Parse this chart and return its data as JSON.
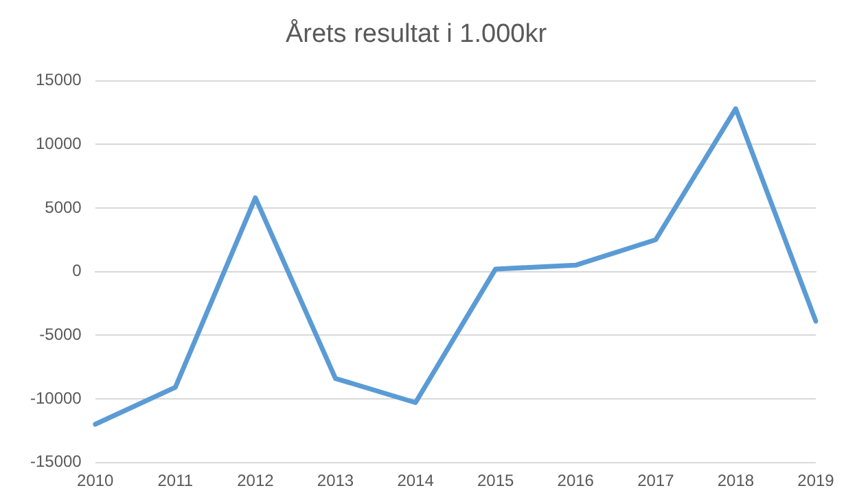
{
  "chart_data": {
    "type": "line",
    "title": "Årets resultat i 1.000kr",
    "categories": [
      "2010",
      "2011",
      "2012",
      "2013",
      "2014",
      "2015",
      "2016",
      "2017",
      "2018",
      "2019"
    ],
    "series": [
      {
        "color": "#5b9bd5",
        "values": [
          -12000,
          -9100,
          5800,
          -8400,
          -10300,
          200,
          500,
          2500,
          12800,
          -3900
        ]
      }
    ],
    "ylim": [
      -15000,
      15000
    ],
    "yticks": [
      -15000,
      -10000,
      -5000,
      0,
      5000,
      10000,
      15000
    ],
    "grid": "y",
    "legend": false,
    "marker": "none",
    "line_style": "solid"
  }
}
